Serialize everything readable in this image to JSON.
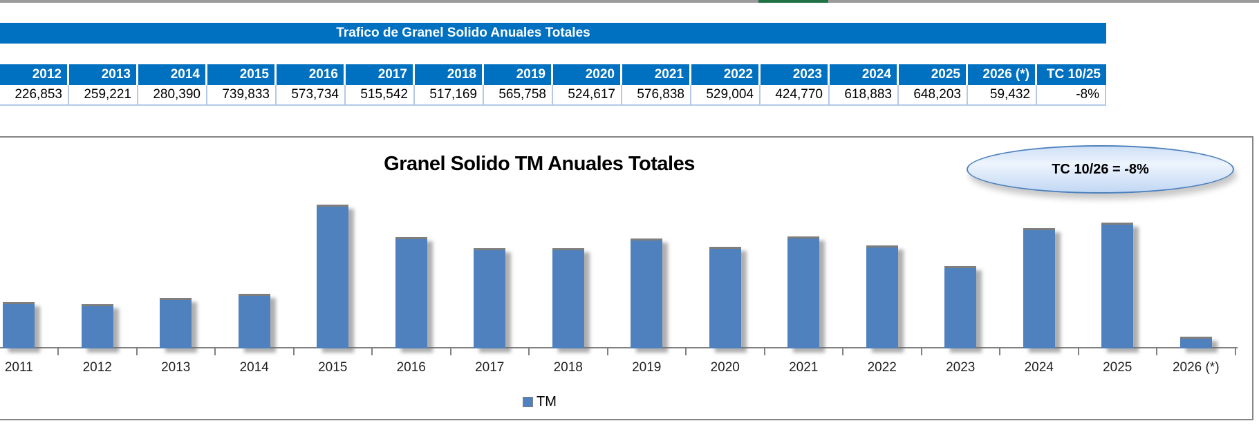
{
  "top_strip": {
    "bar_color": "#9b9b9b",
    "green_tab_color": "#217346"
  },
  "sheet_title": "Trafico de Granel Solido Anuales Totales",
  "table": {
    "columns": [
      "2012",
      "2013",
      "2014",
      "2015",
      "2016",
      "2017",
      "2018",
      "2019",
      "2020",
      "2021",
      "2022",
      "2023",
      "2024",
      "2025",
      "2026 (*)",
      "TC 10/25"
    ],
    "row_values": [
      "226,853",
      "259,221",
      "280,390",
      "739,833",
      "573,734",
      "515,542",
      "517,169",
      "565,758",
      "524,617",
      "576,838",
      "529,004",
      "424,770",
      "618,883",
      "648,203",
      "59,432",
      "-8%"
    ]
  },
  "chart_data": {
    "type": "bar",
    "title": "Granel Solido TM Anuales Totales",
    "categories": [
      "2011",
      "2012",
      "2013",
      "2014",
      "2015",
      "2016",
      "2017",
      "2018",
      "2019",
      "2020",
      "2021",
      "2022",
      "2023",
      "2024",
      "2025",
      "2026 (*)"
    ],
    "values": [
      240000,
      226853,
      259221,
      280390,
      739833,
      573734,
      515542,
      517169,
      565758,
      524617,
      576838,
      529004,
      424770,
      618883,
      648203,
      59432
    ],
    "legend": [
      "TM"
    ],
    "annotation": "TC 10/26 = -8%",
    "xlabel": "",
    "ylabel": "",
    "ylim": [
      0,
      800000
    ],
    "grid": false,
    "legend_position": "bottom-center",
    "bar_color": "#4e81bd"
  },
  "colors": {
    "header_blue": "#0070C0",
    "bar_blue": "#4e81bd",
    "chart_border_gray": "#858585",
    "axis_gray": "#808080",
    "table_data_border": "#b3c9e6",
    "callout_border": "#4e81bd"
  }
}
